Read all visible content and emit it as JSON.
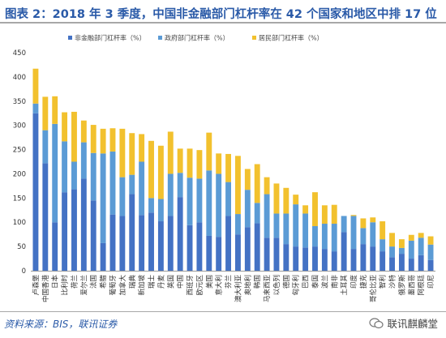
{
  "header": {
    "title": "图表 2：2018 年 3 季度，中国非金融部门杠杆率在 42 个国家和地区中排 17 位"
  },
  "footer": {
    "source": "资料来源：BIS，联讯证券",
    "watermark": "联讯麒麟堂"
  },
  "colors": {
    "nonfinancial": "#4472c4",
    "government": "#5b9bd5",
    "household": "#f2c12e",
    "title": "#2a5aa8"
  },
  "chart_data": {
    "type": "bar",
    "stacked": true,
    "title": "",
    "xlabel": "",
    "ylabel": "",
    "ylim": [
      0,
      450
    ],
    "yticks": [
      0,
      50,
      100,
      150,
      200,
      250,
      300,
      350,
      400,
      450
    ],
    "grid": false,
    "legend_position": "top",
    "categories": [
      "卢森堡",
      "中国香港",
      "日本",
      "比利时",
      "荷兰",
      "爱尔兰",
      "法国",
      "希腊",
      "葡萄牙",
      "加拿大",
      "瑞典",
      "新加坡",
      "瑞士",
      "丹麦",
      "英国",
      "中国",
      "西班牙",
      "欧元区",
      "美国",
      "意大利",
      "芬兰",
      "澳大利亚",
      "奥地利",
      "韩国",
      "马来西亚",
      "以色列",
      "德国",
      "匈牙利",
      "巴西",
      "泰国",
      "波兰",
      "南非",
      "土耳其",
      "印度",
      "捷克",
      "哥伦比亚",
      "智利",
      "沙特",
      "俄罗斯",
      "墨西哥",
      "阿根廷",
      "印尼"
    ],
    "series": [
      {
        "name": "非金融部门杠杆率（%）",
        "color": "#4472c4",
        "values": [
          325,
          222,
          100,
          162,
          168,
          190,
          145,
          57,
          116,
          113,
          158,
          115,
          120,
          102,
          113,
          152,
          94,
          100,
          72,
          70,
          113,
          75,
          90,
          98,
          68,
          68,
          55,
          50,
          48,
          50,
          45,
          40,
          80,
          45,
          55,
          50,
          40,
          28,
          35,
          25,
          32,
          22
        ]
      },
      {
        "name": "政府部门杠杆率（%）",
        "color": "#5b9bd5",
        "values": [
          20,
          68,
          203,
          105,
          57,
          75,
          98,
          185,
          130,
          80,
          40,
          110,
          30,
          46,
          87,
          50,
          98,
          90,
          135,
          130,
          70,
          42,
          77,
          42,
          90,
          50,
          63,
          87,
          70,
          42,
          52,
          57,
          33,
          68,
          33,
          50,
          25,
          22,
          12,
          37,
          36,
          32
        ]
      },
      {
        "name": "居民部门杠杆率（%）",
        "color": "#f2c12e",
        "values": [
          72,
          69,
          57,
          60,
          103,
          45,
          58,
          51,
          48,
          100,
          86,
          57,
          118,
          110,
          87,
          50,
          60,
          59,
          78,
          42,
          58,
          120,
          43,
          80,
          35,
          62,
          53,
          20,
          17,
          70,
          38,
          39,
          0,
          2,
          20,
          10,
          37,
          28,
          18,
          12,
          10,
          17
        ]
      }
    ]
  }
}
